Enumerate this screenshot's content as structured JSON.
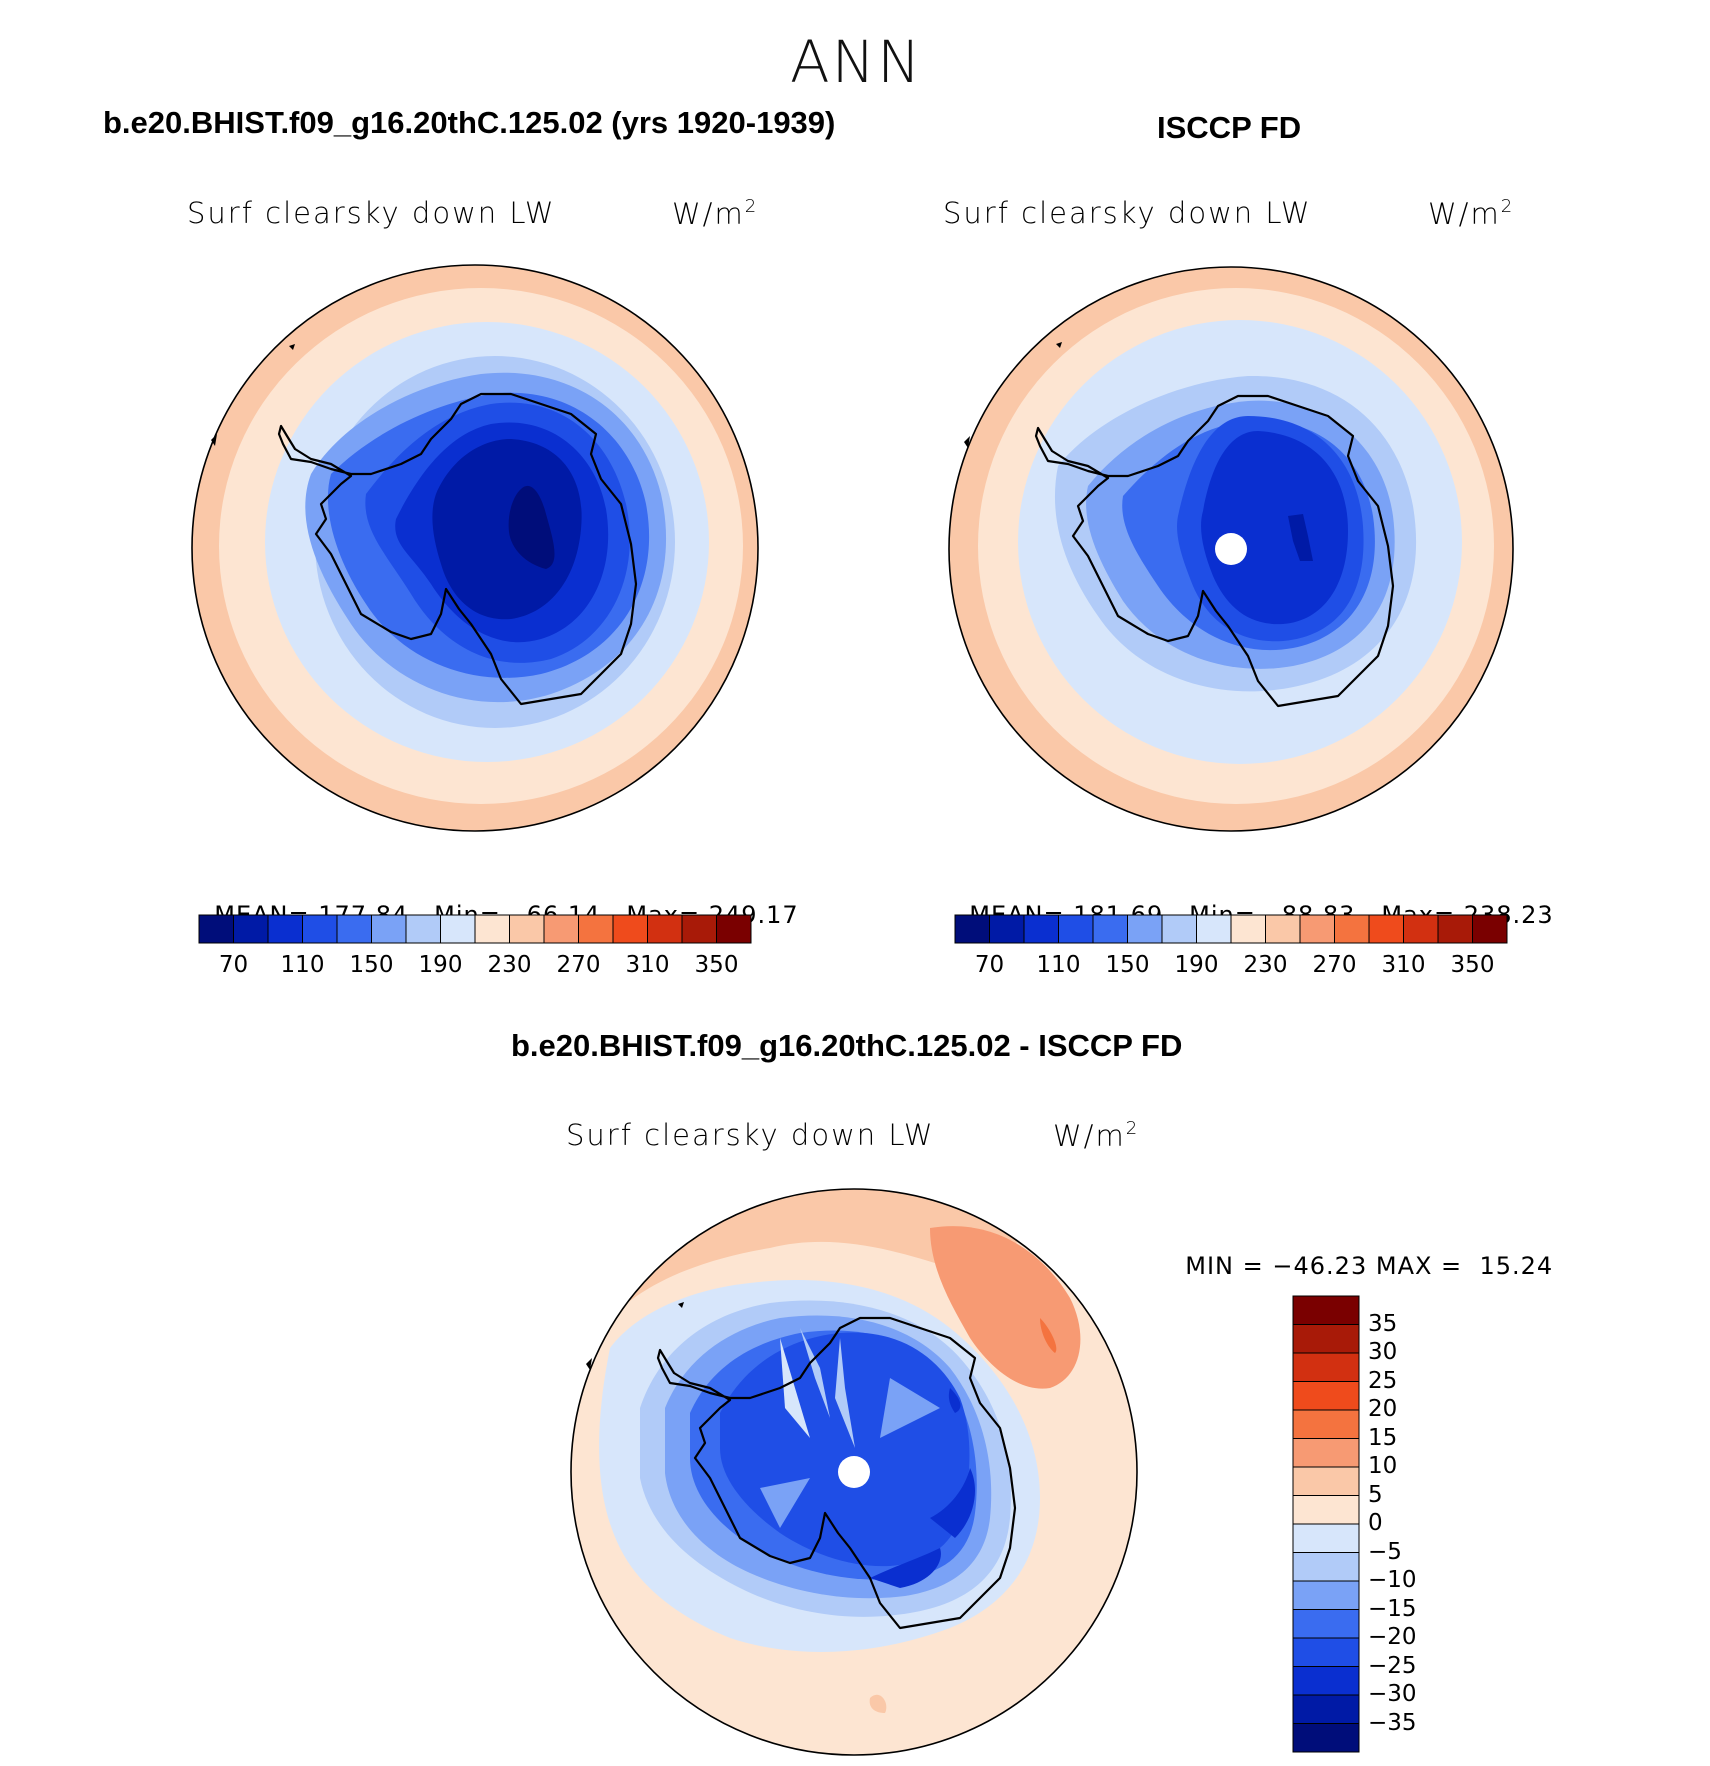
{
  "figure": {
    "title": "ANN",
    "variable_label": "Surf clearsky down LW",
    "units": "W/m",
    "units_exponent": "2"
  },
  "panels": {
    "model": {
      "title": "b.e20.BHIST.f09_g16.20thC.125.02 (yrs 1920-1939)",
      "mean_label": "MEAN=",
      "mean": "177.84",
      "min_label": "Min=",
      "min": "66.14",
      "max_label": "Max=",
      "max": "249.17"
    },
    "obs": {
      "title": "ISCCP FD",
      "mean_label": "MEAN=",
      "mean": "181.69",
      "min_label": "Min=",
      "min": "88.83",
      "max_label": "Max=",
      "max": "238.23"
    },
    "diff": {
      "title": "b.e20.BHIST.f09_g16.20thC.125.02 - ISCCP FD",
      "min_label": "MIN =",
      "min": "−46.23",
      "max_label": "MAX =",
      "max": "15.24"
    }
  },
  "colorbars": {
    "main": {
      "colors": [
        "#000d7a",
        "#001aa6",
        "#0a2fd0",
        "#1f4ee6",
        "#3a6cf0",
        "#7aa2f6",
        "#b1cbf8",
        "#d7e6fb",
        "#fde5d2",
        "#fac8a8",
        "#f79a73",
        "#f4733f",
        "#ef4b1c",
        "#d23011",
        "#a81a08",
        "#7a0000"
      ],
      "ticks": [
        "70",
        "110",
        "150",
        "190",
        "230",
        "270",
        "310",
        "350"
      ]
    },
    "diff": {
      "colors": [
        "#000d7a",
        "#001aa6",
        "#0a2fd0",
        "#1f4ee6",
        "#3a6cf0",
        "#7aa2f6",
        "#b1cbf8",
        "#d7e6fb",
        "#fde5d2",
        "#fac8a8",
        "#f79a73",
        "#f4733f",
        "#ef4b1c",
        "#d23011",
        "#a81a08",
        "#7a0000"
      ],
      "ticks": [
        "35",
        "30",
        "25",
        "20",
        "15",
        "10",
        "5",
        "0",
        "−5",
        "−10",
        "−15",
        "−20",
        "−25",
        "−30",
        "−35"
      ]
    }
  }
}
